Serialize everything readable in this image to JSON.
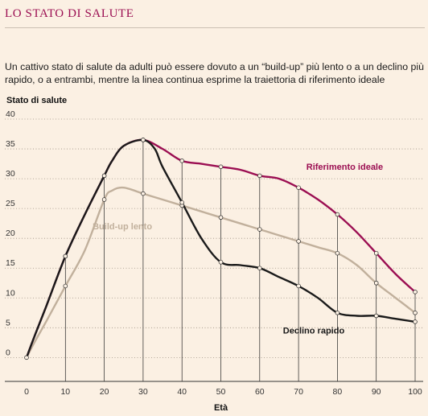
{
  "header": {
    "title": "LO STATO DI SALUTE",
    "subtitle": "Un cattivo stato di salute da adulti può essere dovuto a un “build-up” più lento o a un declino più rapido, o a entrambi, mentre la linea continua esprime la traiettoria di riferimento ideale"
  },
  "chart_data": {
    "type": "line",
    "ylabel": "Stato di salute",
    "xlabel": "Età",
    "xlim": [
      0,
      100
    ],
    "ylim": [
      -4,
      40
    ],
    "x_ticks": [
      0,
      10,
      20,
      30,
      40,
      50,
      60,
      70,
      80,
      90,
      100
    ],
    "y_ticks": [
      {
        "value": 40,
        "label": "40"
      },
      {
        "value": 35,
        "label": "35"
      },
      {
        "value": 30,
        "label": "30"
      },
      {
        "value": 25,
        "label": "25"
      },
      {
        "value": 20,
        "label": "20"
      },
      {
        "value": 15,
        "label": "15"
      },
      {
        "value": 10,
        "label": "10"
      },
      {
        "value": 5,
        "label": "5"
      },
      {
        "value": 0,
        "label": "0"
      }
    ],
    "grid": {
      "horizontal": "dotted",
      "vertical_at_markers": true
    },
    "series": [
      {
        "name": "Riferimento ideale",
        "color": "#9b0e52",
        "label_anchor": [
          72,
          31.5
        ],
        "x": [
          0,
          2,
          5,
          10,
          15,
          20,
          22,
          25,
          30,
          35,
          40,
          45,
          50,
          55,
          60,
          65,
          70,
          75,
          80,
          85,
          90,
          95,
          100
        ],
        "y": [
          0,
          3.5,
          8.5,
          17,
          24,
          30.5,
          33,
          35.5,
          36.5,
          35,
          33,
          32.5,
          32,
          31.5,
          30.5,
          30,
          28.5,
          26.5,
          24,
          21,
          17.5,
          14,
          11
        ],
        "markers_x": [
          10,
          20,
          30,
          40,
          50,
          60,
          70,
          80,
          90,
          100
        ],
        "markers_y": [
          17,
          30.5,
          36.5,
          33,
          32,
          30.5,
          28.5,
          24,
          17.5,
          11
        ]
      },
      {
        "name": "Build-up lento",
        "color": "#c1b09c",
        "label_anchor": [
          17,
          21.5
        ],
        "x": [
          0,
          2,
          5,
          10,
          15,
          20,
          22,
          25,
          30,
          35,
          40,
          45,
          50,
          55,
          60,
          65,
          70,
          75,
          80,
          85,
          90,
          95,
          100
        ],
        "y": [
          0,
          2.5,
          6,
          12,
          18,
          26.5,
          28,
          28.5,
          27.5,
          26.5,
          25.5,
          24.5,
          23.5,
          22.5,
          21.5,
          20.5,
          19.5,
          18.5,
          17.5,
          15.5,
          12.5,
          10,
          7.5
        ],
        "markers_x": [
          10,
          20,
          30,
          40,
          50,
          60,
          70,
          80,
          90,
          100
        ],
        "markers_y": [
          12,
          26.5,
          27.5,
          25.5,
          23.5,
          21.5,
          19.5,
          17.5,
          12.5,
          7.5
        ]
      },
      {
        "name": "Declino rapido",
        "color": "#1a1a1a",
        "label_anchor": [
          66,
          4
        ],
        "x": [
          0,
          2,
          5,
          10,
          15,
          20,
          22,
          25,
          30,
          33,
          35,
          40,
          45,
          50,
          55,
          60,
          65,
          70,
          75,
          80,
          85,
          90,
          95,
          100
        ],
        "y": [
          0,
          3.5,
          8.5,
          17,
          24,
          30.5,
          33,
          35.5,
          36.5,
          35,
          32,
          26,
          20,
          16,
          15.5,
          15,
          13.5,
          12,
          10,
          7.5,
          7,
          7,
          6.5,
          6
        ],
        "markers_x": [
          10,
          20,
          30,
          40,
          50,
          60,
          70,
          80,
          90,
          100
        ],
        "markers_y": [
          17,
          30.5,
          36.5,
          26,
          16,
          15,
          12,
          7.5,
          7,
          6
        ]
      }
    ]
  }
}
